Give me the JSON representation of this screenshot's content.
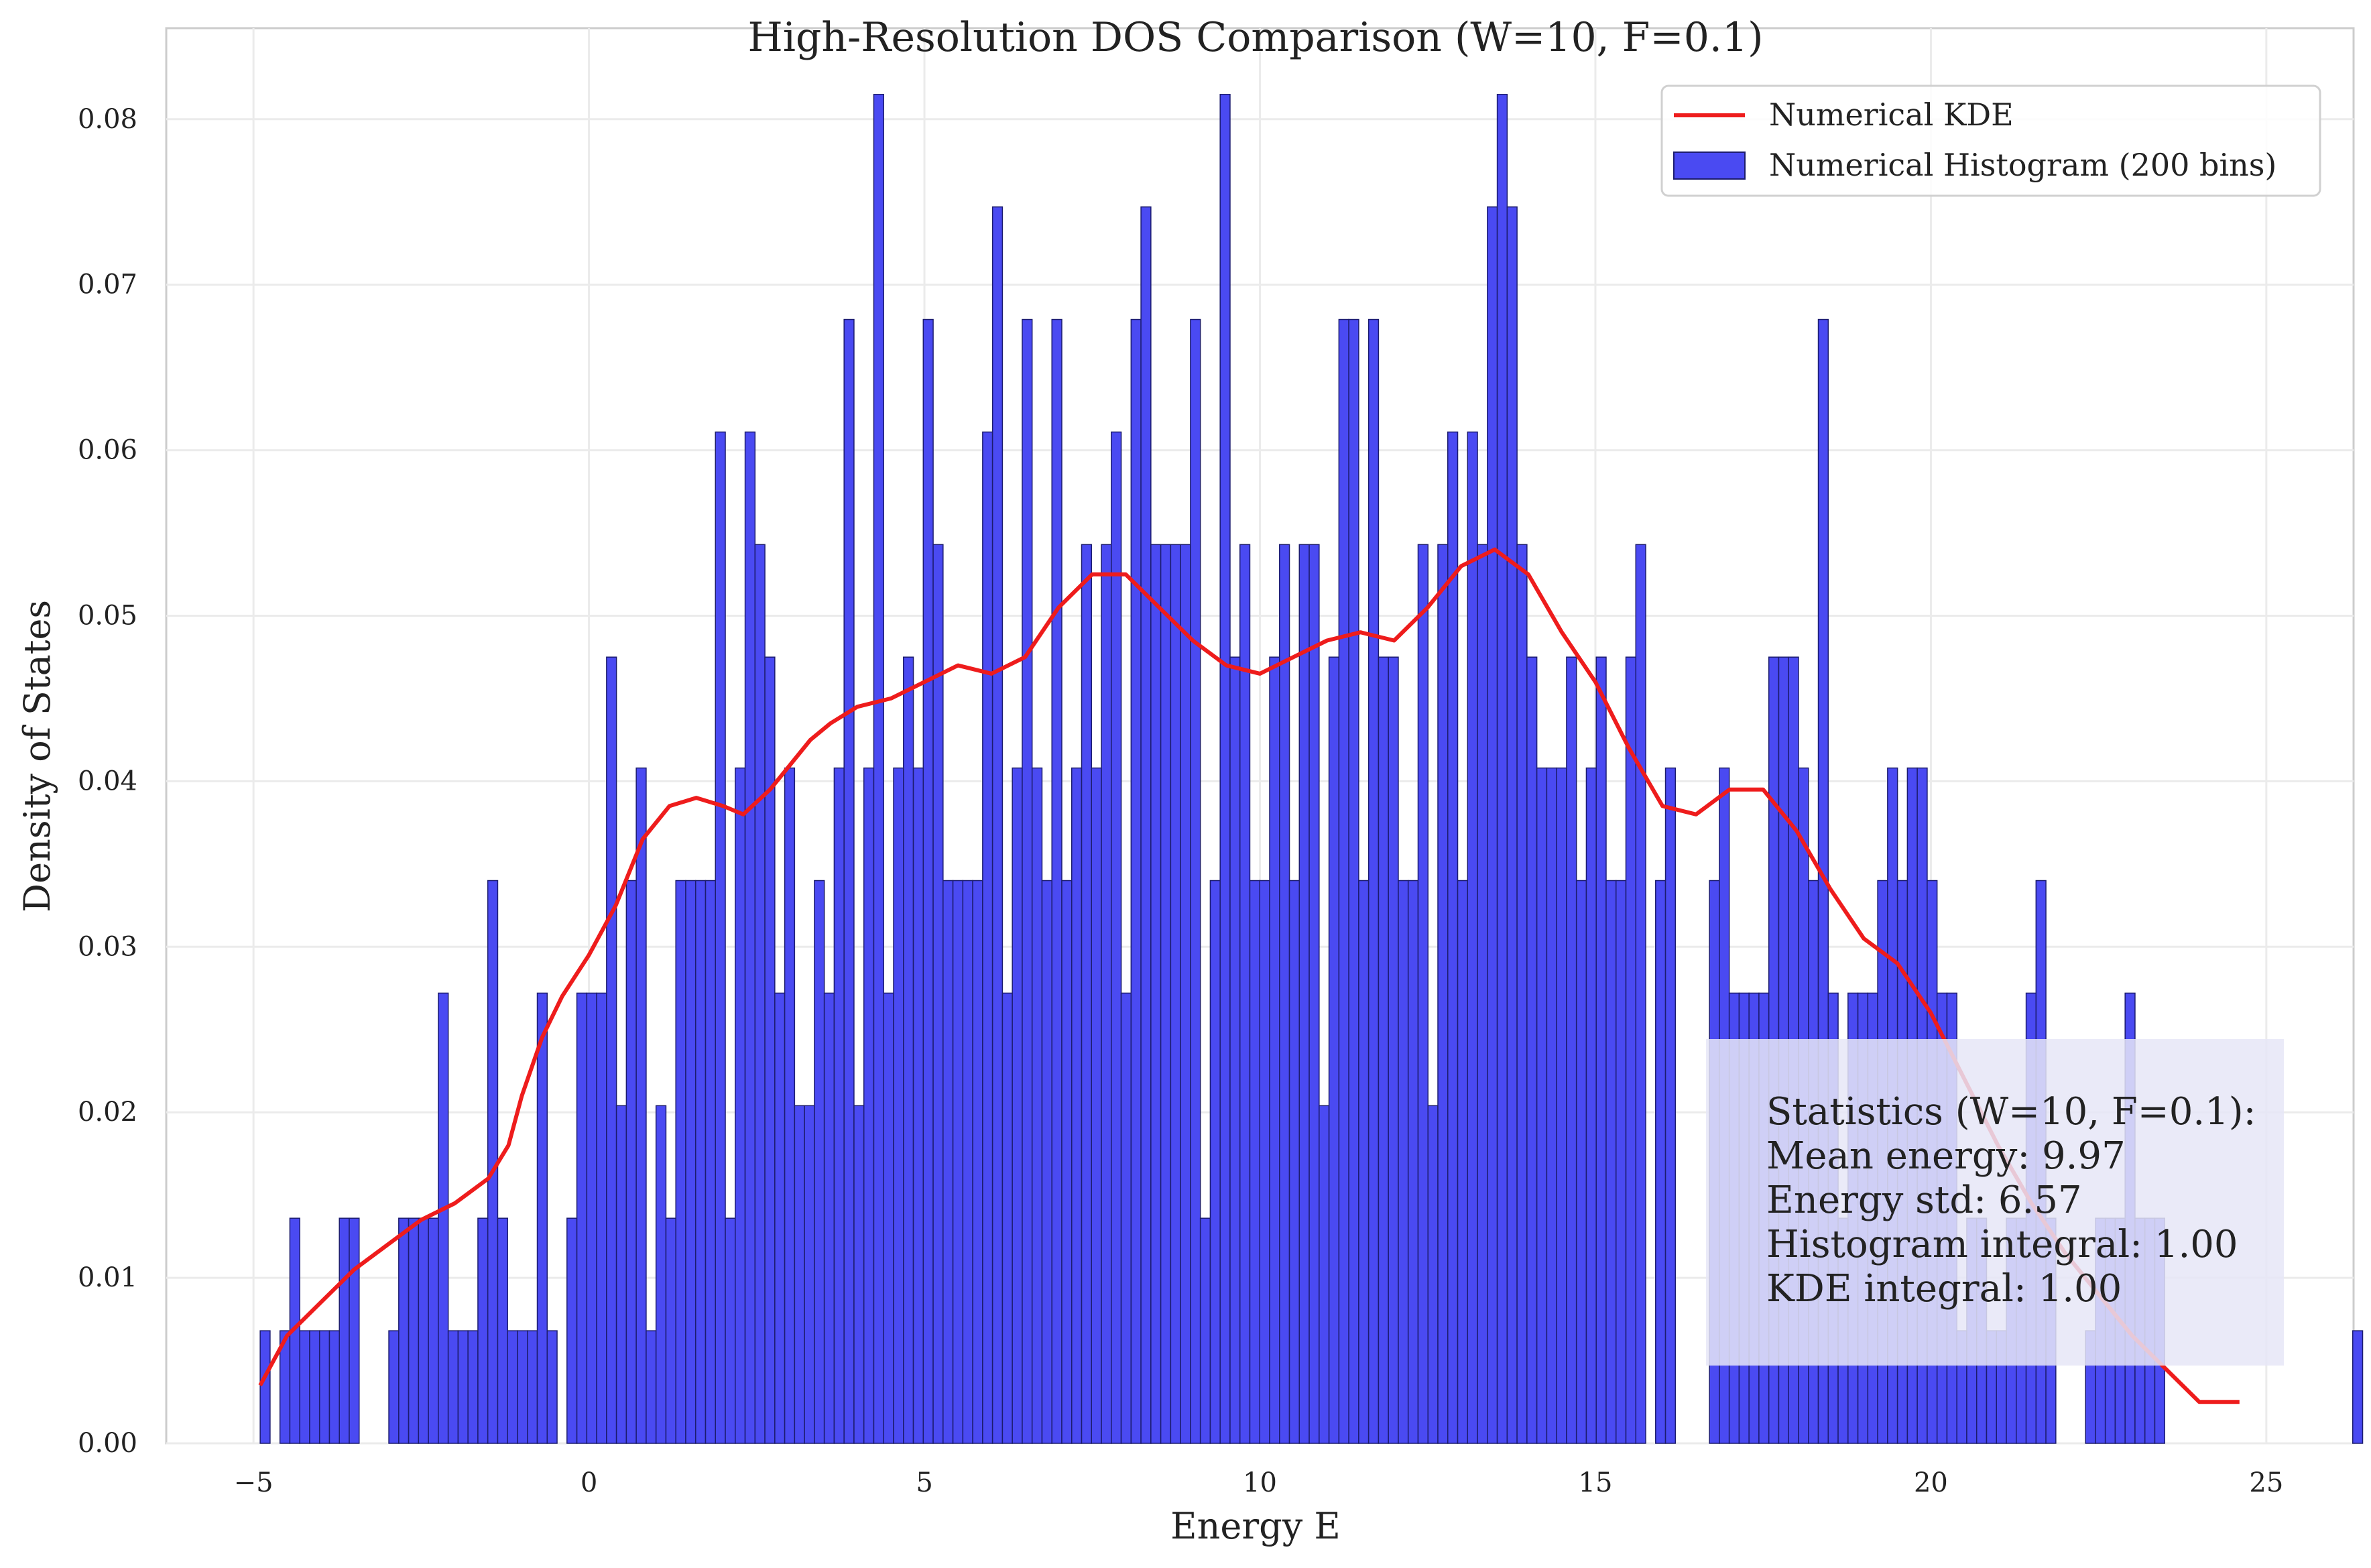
{
  "chart_data": {
    "type": "bar",
    "title": "High-Resolution DOS Comparison (W=10, F=0.1)",
    "xlabel": "Energy E",
    "ylabel": "Density of States",
    "xlim": [
      -6.3,
      26.3
    ],
    "ylim": [
      0,
      0.0855
    ],
    "x_ticks": [
      -5,
      0,
      5,
      10,
      15,
      20,
      25
    ],
    "x_tick_labels": [
      "−5",
      "0",
      "5",
      "10",
      "15",
      "20",
      "25"
    ],
    "y_ticks": [
      0,
      0.01,
      0.02,
      0.03,
      0.04,
      0.05,
      0.06,
      0.07,
      0.08
    ],
    "y_tick_labels": [
      "0.00",
      "0.01",
      "0.02",
      "0.03",
      "0.04",
      "0.05",
      "0.06",
      "0.07",
      "0.08"
    ],
    "grid": true,
    "legend_position": "top-right",
    "legend": [
      {
        "label": "Numerical KDE",
        "kind": "line",
        "color": "#ee1c1c"
      },
      {
        "label": "Numerical Histogram (200 bins)",
        "kind": "bar",
        "color": "#4a4af2"
      }
    ],
    "colors": {
      "histogram": "#4a4af2",
      "histogram_edge": "#1c1c6e",
      "kde": "#ee1c1c",
      "grid": "#ebebeb",
      "stats_box": "#e6e6f7"
    },
    "histogram": {
      "series_name": "Numerical Histogram (200 bins)",
      "x_start": -4.9,
      "bin_width": 0.1475,
      "values": [
        0.0068,
        0.0,
        0.0068,
        0.0136,
        0.0068,
        0.0068,
        0.0068,
        0.0068,
        0.0136,
        0.0136,
        0.0,
        0.0,
        0.0,
        0.0068,
        0.0136,
        0.0136,
        0.0136,
        0.0136,
        0.0272,
        0.0068,
        0.0068,
        0.0068,
        0.0136,
        0.034,
        0.0136,
        0.0068,
        0.0068,
        0.0068,
        0.0272,
        0.0068,
        0.0,
        0.0136,
        0.0272,
        0.0272,
        0.0272,
        0.0475,
        0.0204,
        0.034,
        0.0408,
        0.0068,
        0.0204,
        0.0136,
        0.034,
        0.034,
        0.034,
        0.034,
        0.0611,
        0.0136,
        0.0408,
        0.0611,
        0.0543,
        0.0475,
        0.0272,
        0.0408,
        0.0204,
        0.0204,
        0.034,
        0.0272,
        0.0408,
        0.0679,
        0.0204,
        0.0408,
        0.0815,
        0.0272,
        0.0408,
        0.0475,
        0.0408,
        0.0679,
        0.0543,
        0.034,
        0.034,
        0.034,
        0.034,
        0.0611,
        0.0747,
        0.0272,
        0.0408,
        0.0679,
        0.0408,
        0.034,
        0.0679,
        0.034,
        0.0408,
        0.0543,
        0.0408,
        0.0543,
        0.0611,
        0.0272,
        0.0679,
        0.0747,
        0.0543,
        0.0543,
        0.0543,
        0.0543,
        0.0679,
        0.0136,
        0.034,
        0.0815,
        0.0475,
        0.0543,
        0.034,
        0.034,
        0.0475,
        0.0543,
        0.034,
        0.0543,
        0.0543,
        0.0204,
        0.0475,
        0.0679,
        0.0679,
        0.034,
        0.0679,
        0.0475,
        0.0475,
        0.034,
        0.034,
        0.0543,
        0.0204,
        0.0543,
        0.0611,
        0.034,
        0.0611,
        0.0543,
        0.0747,
        0.0815,
        0.0747,
        0.0543,
        0.0475,
        0.0408,
        0.0408,
        0.0408,
        0.0475,
        0.034,
        0.0408,
        0.0475,
        0.034,
        0.034,
        0.0475,
        0.0543,
        0.0,
        0.034,
        0.0408,
        0.0,
        0.0,
        0.0,
        0.0,
        0.0,
        0.0,
        0.0,
        0.0,
        0.0,
        0.0,
        0.0,
        0.0,
        0.0,
        0.0,
        0.0,
        0.0,
        0.0,
        0.0,
        0.0,
        0.0,
        0.0,
        0.0,
        0.0,
        0.0,
        0.0,
        0.0,
        0.0,
        0.0,
        0.0,
        0.0,
        0.0,
        0.0,
        0.0,
        0.0,
        0.0,
        0.0,
        0.0,
        0.0,
        0.0,
        0.0,
        0.0,
        0.0,
        0.0,
        0.0,
        0.0,
        0.0,
        0.0,
        0.0,
        0.0,
        0.0,
        0.0,
        0.0,
        0.0,
        0.0,
        0.0,
        0.0,
        0.0,
        0.0,
        0.0,
        0.0
      ]
    },
    "histogram_tail": {
      "x_start": 16.7,
      "bin_width": 0.1475,
      "values": [
        0.034,
        0.0408,
        0.0272,
        0.0272,
        0.0272,
        0.0272,
        0.0475,
        0.0475,
        0.0475,
        0.0408,
        0.034,
        0.0679,
        0.0272,
        0.0136,
        0.0272,
        0.0272,
        0.0272,
        0.034,
        0.0408,
        0.034,
        0.0408,
        0.0408,
        0.034,
        0.0272,
        0.0272,
        0.0068,
        0.0136,
        0.0136,
        0.0068,
        0.0068,
        0.0136,
        0.0136,
        0.0272,
        0.034,
        0.0136,
        0.0,
        0.0,
        0.0,
        0.0068,
        0.0136,
        0.0136,
        0.0136,
        0.0272,
        0.0136,
        0.0136,
        0.0136,
        0.0,
        0.0,
        0.0,
        0.0,
        0.0,
        0.0,
        0.0,
        0.0,
        0.0,
        0.0,
        0.0,
        0.0,
        0.0,
        0.0,
        0.0,
        0.0,
        0.0,
        0.0,
        0.0,
        0.0068,
        0.0
      ]
    },
    "kde": {
      "series_name": "Numerical KDE",
      "x": [
        -4.9,
        -4.5,
        -4.0,
        -3.5,
        -3.0,
        -2.5,
        -2.0,
        -1.5,
        -1.2,
        -1.0,
        -0.7,
        -0.4,
        0.0,
        0.4,
        0.8,
        1.2,
        1.6,
        2.0,
        2.3,
        2.7,
        3.0,
        3.3,
        3.6,
        4.0,
        4.5,
        5.0,
        5.5,
        6.0,
        6.5,
        7.0,
        7.5,
        8.0,
        8.5,
        9.0,
        9.5,
        10.0,
        10.5,
        11.0,
        11.5,
        12.0,
        12.5,
        13.0,
        13.5,
        14.0,
        14.5,
        15.0,
        15.5,
        16.0,
        16.5,
        17.0,
        17.5,
        18.0,
        18.5,
        19.0,
        19.5,
        20.0,
        20.5,
        21.0,
        21.5,
        22.0,
        22.5,
        23.0,
        23.5,
        24.0,
        24.6
      ],
      "y": [
        0.0035,
        0.0065,
        0.0085,
        0.0105,
        0.012,
        0.0135,
        0.0145,
        0.016,
        0.018,
        0.021,
        0.0245,
        0.027,
        0.0295,
        0.0325,
        0.0365,
        0.0385,
        0.039,
        0.0385,
        0.038,
        0.0395,
        0.041,
        0.0425,
        0.0435,
        0.0445,
        0.045,
        0.046,
        0.047,
        0.0465,
        0.0475,
        0.0505,
        0.0525,
        0.0525,
        0.0505,
        0.0485,
        0.047,
        0.0465,
        0.0475,
        0.0485,
        0.049,
        0.0485,
        0.0505,
        0.053,
        0.054,
        0.0525,
        0.049,
        0.046,
        0.042,
        0.0385,
        0.038,
        0.0395,
        0.0395,
        0.037,
        0.0335,
        0.0305,
        0.029,
        0.026,
        0.022,
        0.018,
        0.0145,
        0.0115,
        0.009,
        0.0065,
        0.0045,
        0.0025,
        0.0025
      ]
    },
    "stats": {
      "lines": [
        "Statistics (W=10, F=0.1):",
        "Mean energy: 9.97",
        "Energy std: 6.57",
        "Histogram integral: 1.00",
        "KDE integral: 1.00"
      ]
    }
  }
}
